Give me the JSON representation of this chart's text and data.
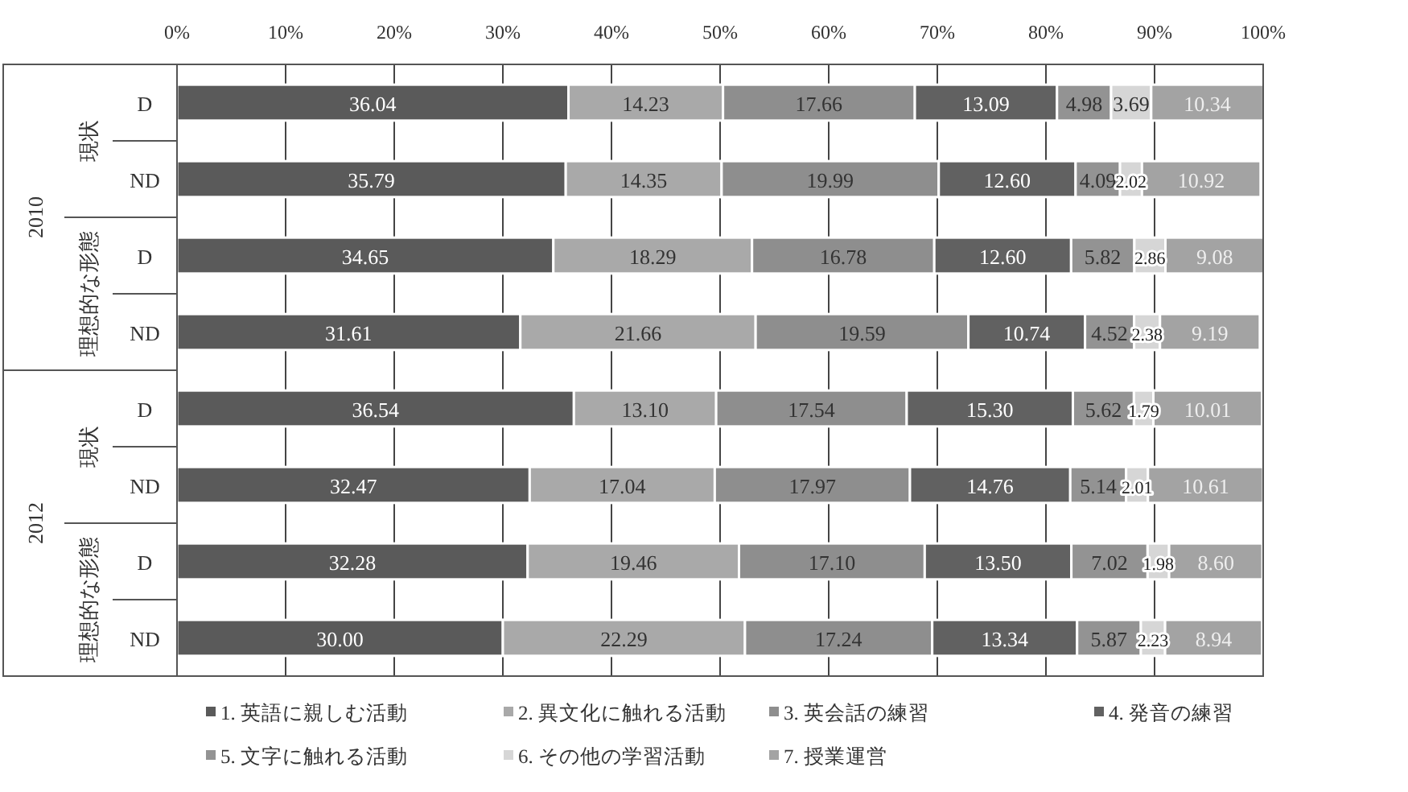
{
  "chart_data": {
    "type": "bar",
    "orientation": "horizontal",
    "stacked": true,
    "grid": "x",
    "legend": "bottom",
    "categories": [
      "D",
      "ND",
      "D",
      "ND",
      "D",
      "ND",
      "D",
      "ND"
    ],
    "annotations": [
      "2010",
      "現状",
      "理想的な形態",
      "2012",
      "現状",
      "理想的な形態"
    ],
    "xlim": [
      0,
      100
    ],
    "xticks": [
      {
        "value": 0,
        "label": "0%"
      },
      {
        "value": 10,
        "label": "10%"
      },
      {
        "value": 20,
        "label": "20%"
      },
      {
        "value": 30,
        "label": "30%"
      },
      {
        "value": 40,
        "label": "40%"
      },
      {
        "value": 50,
        "label": "50%"
      },
      {
        "value": 60,
        "label": "60%"
      },
      {
        "value": 70,
        "label": "70%"
      },
      {
        "value": 80,
        "label": "80%"
      },
      {
        "value": 90,
        "label": "90%"
      },
      {
        "value": 100,
        "label": "100%"
      }
    ],
    "series": [
      {
        "name": "1. 英語に親しむ活動",
        "color": "#5a5a5a",
        "values": [
          36.04,
          35.79,
          34.65,
          31.61,
          36.54,
          32.47,
          32.28,
          30.0
        ],
        "value_labels": [
          "36.04",
          "35.79",
          "34.65",
          "31.61",
          "36.54",
          "32.47",
          "32.28",
          "30.00"
        ]
      },
      {
        "name": "2. 異文化に触れる活動",
        "color": "#a9a9a9",
        "values": [
          14.23,
          14.35,
          18.29,
          21.66,
          13.1,
          17.04,
          19.46,
          22.29
        ],
        "value_labels": [
          "14.23",
          "14.35",
          "18.29",
          "21.66",
          "13.10",
          "17.04",
          "19.46",
          "22.29"
        ]
      },
      {
        "name": "3. 英会話の練習",
        "color": "#8e8e8e",
        "values": [
          17.66,
          19.99,
          16.78,
          19.59,
          17.54,
          17.97,
          17.1,
          17.24
        ],
        "value_labels": [
          "17.66",
          "19.99",
          "16.78",
          "19.59",
          "17.54",
          "17.97",
          "17.10",
          "17.24"
        ]
      },
      {
        "name": "4. 発音の練習",
        "color": "#616161",
        "values": [
          13.09,
          12.6,
          12.6,
          10.74,
          15.3,
          14.76,
          13.5,
          13.34
        ],
        "value_labels": [
          "13.09",
          "12.60",
          "12.60",
          "10.74",
          "15.30",
          "14.76",
          "13.50",
          "13.34"
        ]
      },
      {
        "name": "5. 文字に触れる活動",
        "color": "#939393",
        "values": [
          4.98,
          4.09,
          5.82,
          4.52,
          5.62,
          5.14,
          7.02,
          5.87
        ],
        "value_labels": [
          "4.98",
          "4.09",
          "5.82",
          "4.52",
          "5.62",
          "5.14",
          "7.02",
          "5.87"
        ]
      },
      {
        "name": "6. その他の学習活動",
        "color": "#d6d6d6",
        "values": [
          3.69,
          2.02,
          2.86,
          2.38,
          1.79,
          2.01,
          1.98,
          2.23
        ],
        "value_labels": [
          "3.69",
          "2.02",
          "2.86",
          "2.38",
          "1.79",
          "2.01",
          "1.98",
          "2.23"
        ]
      },
      {
        "name": "7. 授業運営",
        "color": "#a3a3a3",
        "values": [
          10.34,
          10.92,
          9.08,
          9.19,
          10.01,
          10.61,
          8.6,
          8.94
        ],
        "value_labels": [
          "10.34",
          "10.92",
          "9.08",
          "9.19",
          "10.01",
          "10.61",
          "8.60",
          "8.94"
        ]
      }
    ]
  }
}
